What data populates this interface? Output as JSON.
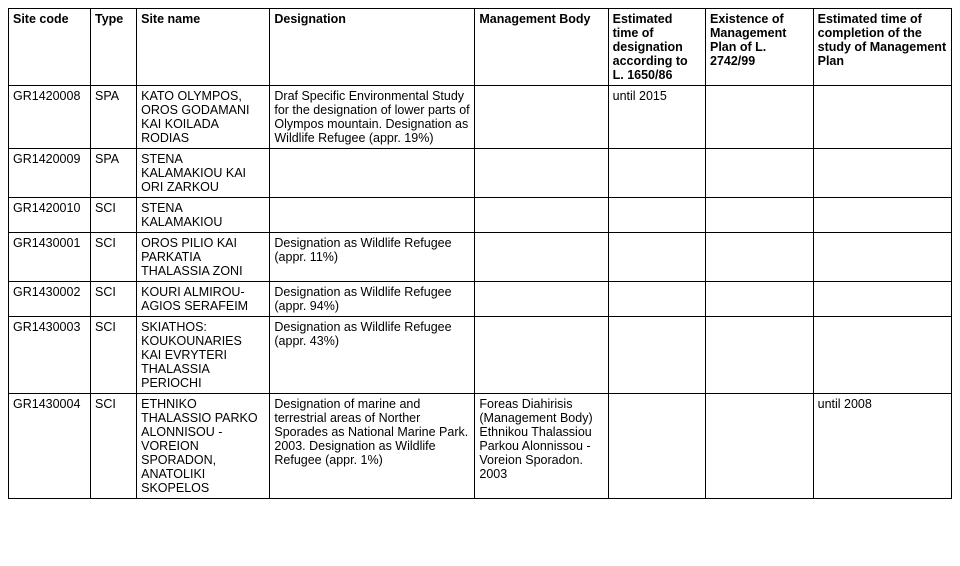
{
  "columns": [
    "Site code",
    "Type",
    "Site name",
    "Designation",
    "Management Body",
    "Estimated time of designation according to L. 1650/86",
    "Existence of Management Plan of L. 2742/99",
    "Estimated time of completion of the study of Management Plan"
  ],
  "rows": [
    {
      "site_code": "GR1420008",
      "type": "SPA",
      "site_name": "KATO OLYMPOS, OROS GODAMANI KAI KOILADA RODIAS",
      "designation": "Draf Specific Environmental Study for the designation of lower parts of Olympos mountain. Designation as Wildlife Refugee (appr. 19%)",
      "management_body": "",
      "est_time_designation": "until 2015",
      "existence_mgmt_plan": "",
      "est_time_completion": ""
    },
    {
      "site_code": "GR1420009",
      "type": "SPA",
      "site_name": "STENA KALAMAKIOU KAI ORI ZARKOU",
      "designation": "",
      "management_body": "",
      "est_time_designation": "",
      "existence_mgmt_plan": "",
      "est_time_completion": ""
    },
    {
      "site_code": "GR1420010",
      "type": "SCI",
      "site_name": "STENA KALAMAKIOU",
      "designation": "",
      "management_body": "",
      "est_time_designation": "",
      "existence_mgmt_plan": "",
      "est_time_completion": ""
    },
    {
      "site_code": "GR1430001",
      "type": "SCI",
      "site_name": "OROS PILIO KAI PARKATIA THALASSIA ZONI",
      "designation": "Designation as Wildlife Refugee (appr. 11%)",
      "management_body": "",
      "est_time_designation": "",
      "existence_mgmt_plan": "",
      "est_time_completion": ""
    },
    {
      "site_code": "GR1430002",
      "type": "SCI",
      "site_name": "KOURI ALMIROU-AGIOS SERAFEIM",
      "designation": "Designation as Wildlife Refugee (appr. 94%)",
      "management_body": "",
      "est_time_designation": "",
      "existence_mgmt_plan": "",
      "est_time_completion": ""
    },
    {
      "site_code": "GR1430003",
      "type": "SCI",
      "site_name": "SKIATHOS: KOUKOUNARIES KAI EVRYTERI THALASSIA PERIOCHI",
      "designation": "Designation as Wildlife Refugee (appr. 43%)",
      "management_body": "",
      "est_time_designation": "",
      "existence_mgmt_plan": "",
      "est_time_completion": ""
    },
    {
      "site_code": "GR1430004",
      "type": "SCI",
      "site_name": "ETHNIKO THALASSIO PARKO ALONNISOU - VOREION SPORADON, ANATOLIKI SKOPELOS",
      "designation": "Designation of marine and terrestrial areas of Norther Sporades as National Marine Park. 2003. Designation as Wildlife Refugee (appr. 1%)",
      "management_body": "Foreas Diahirisis (Management Body) Ethnikou Thalassiou Parkou Alonnissou - Voreion Sporadon. 2003",
      "est_time_designation": "",
      "existence_mgmt_plan": "",
      "est_time_completion": "until 2008"
    }
  ]
}
